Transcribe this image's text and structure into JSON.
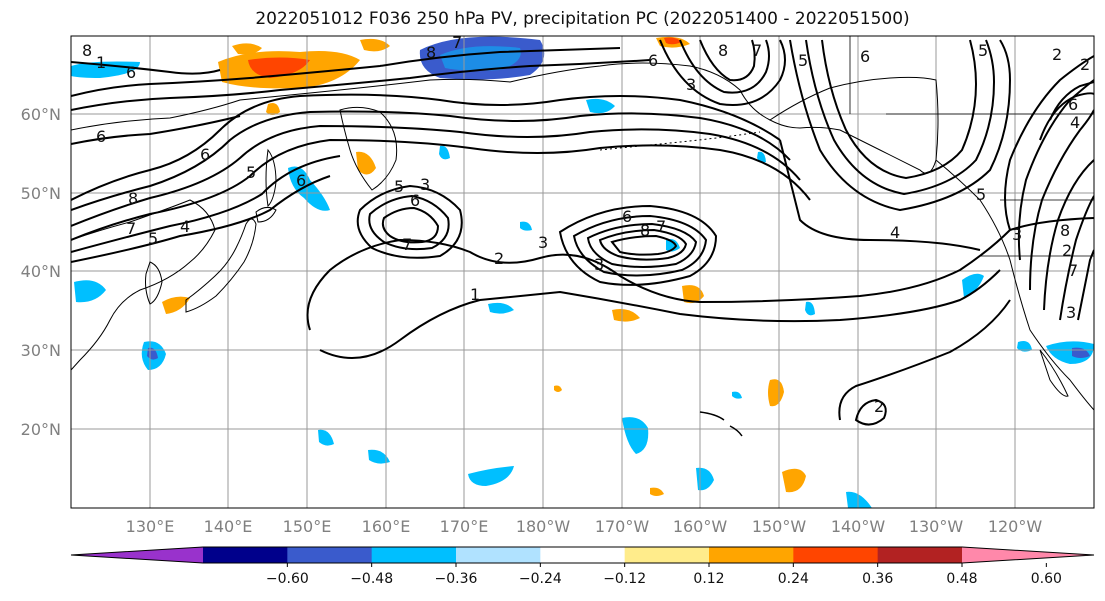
{
  "title": "2022051012 F036 250 hPa PV, precipitation PC (2022051400 - 2022051500)",
  "map": {
    "lat_labels": [
      "60°N",
      "50°N",
      "40°N",
      "30°N",
      "20°N"
    ],
    "lon_labels": [
      "130°E",
      "140°E",
      "150°E",
      "160°E",
      "170°E",
      "180°W",
      "170°W",
      "160°W",
      "150°W",
      "140°W",
      "130°W",
      "120°W"
    ],
    "contour_labels": [
      "1",
      "6",
      "8",
      "8",
      "7",
      "6",
      "8",
      "7",
      "5",
      "4",
      "6",
      "5",
      "6",
      "3",
      "5",
      "6",
      "7",
      "2",
      "6",
      "3",
      "8",
      "7",
      "6",
      "8",
      "7",
      "6",
      "5",
      "1",
      "3",
      "2",
      "4",
      "5",
      "3",
      "3",
      "8",
      "2",
      "7",
      "2",
      "6",
      "5",
      "4",
      "2",
      "3"
    ]
  },
  "colorbar": {
    "colors": [
      "#9932CC",
      "#00008B",
      "#3A5BCC",
      "#00BFFF",
      "#B0E2FF",
      "#FFFFFF",
      "#FFEC8B",
      "#FFA500",
      "#FF4500",
      "#B22222",
      "#FF88AA"
    ],
    "tick_labels": [
      "−0.60",
      "−0.48",
      "−0.36",
      "−0.24",
      "−0.12",
      "0.12",
      "0.24",
      "0.36",
      "0.48",
      "0.60"
    ]
  }
}
